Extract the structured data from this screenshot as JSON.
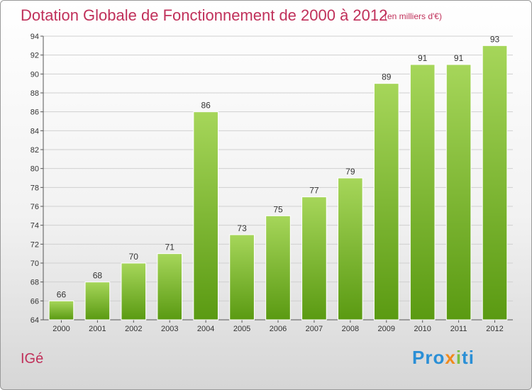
{
  "header": {
    "title": "Dotation Globale de Fonctionnement de 2000 à 2012",
    "subtitle": "(en milliers d'€)"
  },
  "footer": {
    "commune": "IGé",
    "logo": [
      "Pro",
      "x",
      "i",
      "ti"
    ]
  },
  "colors": {
    "title": "#c0305a",
    "bar_light": "#a6d65a",
    "bar_dark": "#5a9a12",
    "grid": "#d0d0d0"
  },
  "chart_data": {
    "type": "bar",
    "categories": [
      "2000",
      "2001",
      "2002",
      "2003",
      "2004",
      "2005",
      "2006",
      "2007",
      "2008",
      "2009",
      "2010",
      "2011",
      "2012"
    ],
    "values": [
      66,
      68,
      70,
      71,
      86,
      73,
      75,
      77,
      79,
      89,
      91,
      91,
      93
    ],
    "title": "Dotation Globale de Fonctionnement de 2000 à 2012",
    "subtitle": "(en milliers d'€)",
    "xlabel": "",
    "ylabel": "",
    "ylim": [
      64,
      94
    ],
    "yticks": [
      64,
      66,
      68,
      70,
      72,
      74,
      76,
      78,
      80,
      82,
      84,
      86,
      88,
      90,
      92,
      94
    ],
    "grid": true,
    "legend": "none"
  }
}
